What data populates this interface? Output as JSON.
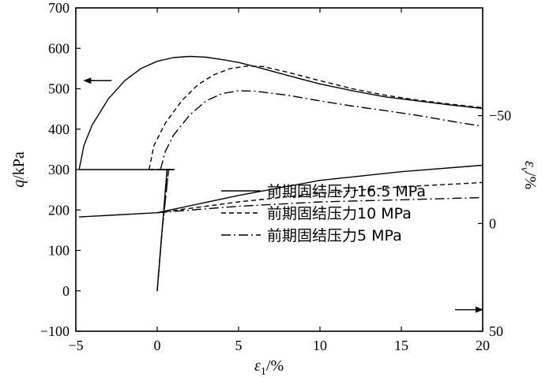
{
  "chart_data": {
    "type": "line",
    "x_axis": {
      "label_symbol": "ε",
      "label_sub": "1",
      "label_unit": "/%",
      "range": [
        -5,
        20
      ],
      "ticks": [
        -5,
        0,
        5,
        10,
        15,
        20
      ],
      "tick_labels": [
        "−5",
        "0",
        "5",
        "10",
        "15",
        "20"
      ]
    },
    "y_axis_left": {
      "label_symbol": "q",
      "label_unit": "/kPa",
      "range": [
        -100,
        700
      ],
      "ticks": [
        -100,
        0,
        100,
        200,
        300,
        400,
        500,
        600,
        700
      ],
      "tick_labels": [
        "−100",
        "0",
        "100",
        "200",
        "300",
        "400",
        "500",
        "600",
        "700"
      ]
    },
    "y_axis_right": {
      "label_symbol": "ε",
      "label_sub": "v",
      "label_unit": "/%",
      "inverted": true,
      "range": [
        -100,
        50
      ],
      "ticks": [
        -50,
        0,
        50
      ],
      "tick_labels": [
        "−50",
        "0",
        "50"
      ]
    },
    "legend": {
      "position": "center-right",
      "entries": [
        "前期固结压力16.5 MPa",
        "前期固结压力10 MPa",
        "前期固结压力5 MPa"
      ]
    },
    "annotations": [
      {
        "type": "arrow",
        "direction": "left",
        "refers_to": "q",
        "at": [
          -2.8,
          520
        ]
      },
      {
        "type": "arrow",
        "direction": "right",
        "refers_to": "εv",
        "at": [
          18.3,
          40
        ]
      }
    ],
    "series": [
      {
        "name": "前期固结压力16.5 MPa",
        "line_style": "solid",
        "q_curve": [
          [
            -4.8,
            300
          ],
          [
            -4.5,
            360
          ],
          [
            -4,
            410
          ],
          [
            -3,
            475
          ],
          [
            -2,
            520
          ],
          [
            -1,
            550
          ],
          [
            0,
            568
          ],
          [
            1,
            577
          ],
          [
            2,
            580
          ],
          [
            3,
            578
          ],
          [
            4,
            572
          ],
          [
            5,
            565
          ],
          [
            6,
            555
          ],
          [
            8,
            533
          ],
          [
            10,
            512
          ],
          [
            12,
            495
          ],
          [
            14,
            480
          ],
          [
            16,
            470
          ],
          [
            18,
            460
          ],
          [
            20,
            451
          ]
        ],
        "preconsolidation_q": [
          [
            -4.8,
            300
          ],
          [
            0.9,
            300
          ],
          [
            0.6,
            300
          ],
          [
            0.3,
            150
          ],
          [
            0,
            0
          ]
        ],
        "ev_curve": [
          [
            -4.8,
            -3
          ],
          [
            0,
            -5
          ],
          [
            5,
            -13
          ],
          [
            10,
            -20
          ],
          [
            15,
            -24
          ],
          [
            20,
            -27
          ]
        ]
      },
      {
        "name": "前期固结压力10 MPa",
        "line_style": "dashed",
        "q_curve": [
          [
            -0.5,
            300
          ],
          [
            -0.2,
            360
          ],
          [
            0.5,
            415
          ],
          [
            1.5,
            470
          ],
          [
            2.5,
            510
          ],
          [
            3.5,
            535
          ],
          [
            4.5,
            550
          ],
          [
            5.5,
            556
          ],
          [
            6.5,
            555
          ],
          [
            8,
            541
          ],
          [
            10,
            520
          ],
          [
            12,
            500
          ],
          [
            14,
            484
          ],
          [
            16,
            472
          ],
          [
            18,
            462
          ],
          [
            20,
            453
          ]
        ],
        "preconsolidation_q": [
          [
            -0.5,
            300
          ],
          [
            1,
            300
          ],
          [
            0.7,
            300
          ],
          [
            0.3,
            150
          ],
          [
            0,
            0
          ]
        ],
        "ev_curve": [
          [
            0,
            -5
          ],
          [
            5,
            -10
          ],
          [
            10,
            -14
          ],
          [
            15,
            -17
          ],
          [
            20,
            -19
          ]
        ]
      },
      {
        "name": "前期固结压力5 MPa",
        "line_style": "dashdot",
        "q_curve": [
          [
            0.2,
            300
          ],
          [
            0.5,
            345
          ],
          [
            1,
            385
          ],
          [
            2,
            435
          ],
          [
            3,
            470
          ],
          [
            4,
            488
          ],
          [
            5,
            495
          ],
          [
            6,
            494
          ],
          [
            8,
            484
          ],
          [
            10,
            470
          ],
          [
            12,
            457
          ],
          [
            14,
            446
          ],
          [
            16,
            434
          ],
          [
            18,
            420
          ],
          [
            20,
            407
          ]
        ],
        "preconsolidation_q": [
          [
            0.2,
            300
          ],
          [
            1.1,
            300
          ],
          [
            0.7,
            300
          ],
          [
            0.3,
            150
          ],
          [
            0,
            0
          ]
        ],
        "ev_curve": [
          [
            0,
            -5
          ],
          [
            5,
            -8
          ],
          [
            10,
            -10
          ],
          [
            15,
            -11
          ],
          [
            20,
            -12
          ]
        ]
      }
    ]
  }
}
